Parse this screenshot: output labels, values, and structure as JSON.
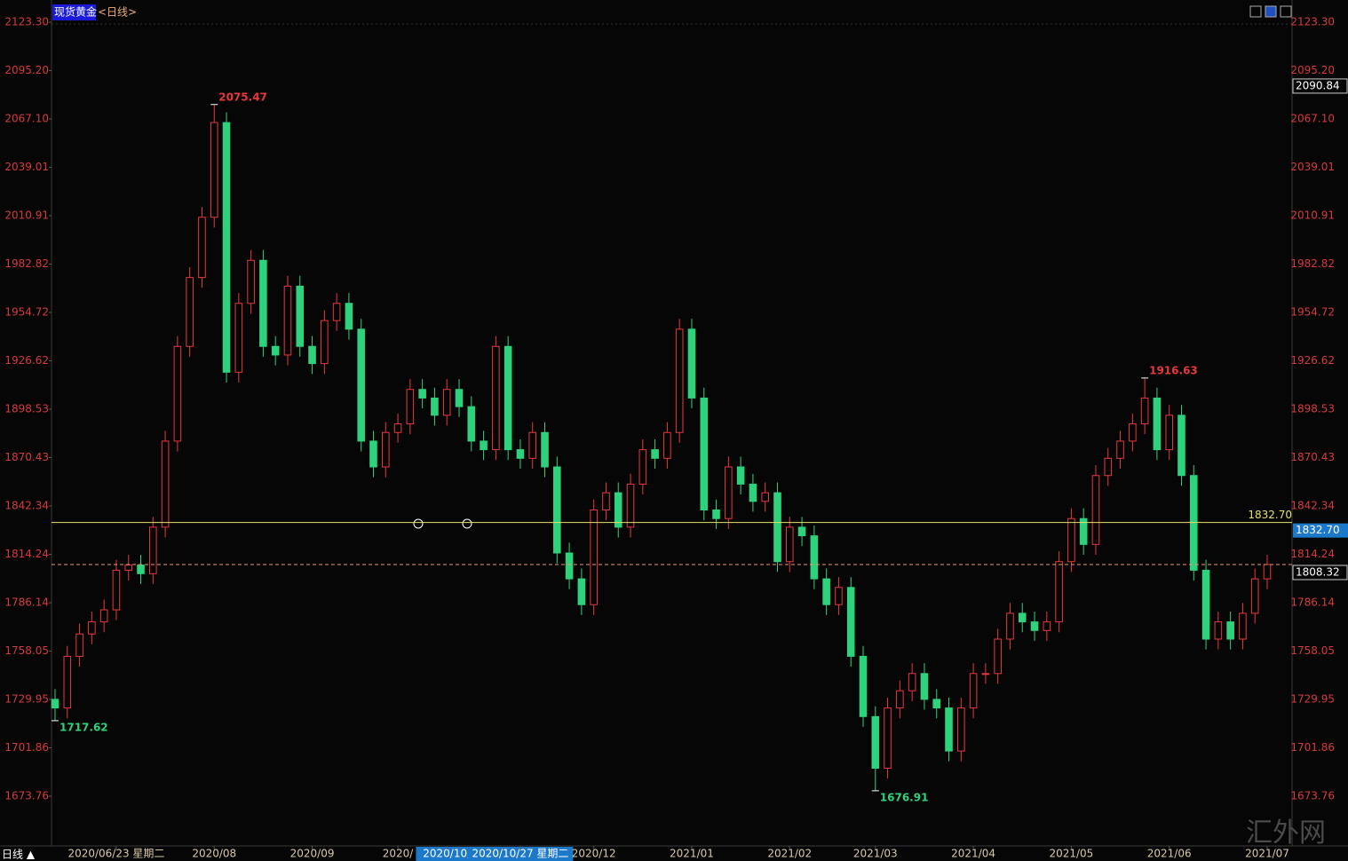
{
  "chart_data": {
    "type": "candlestick",
    "title": "现货黄金",
    "subtitle": "<日线>",
    "period_label": "日线 ▲",
    "watermark": "汇外网",
    "open": [
      1730,
      1725,
      1755,
      1768,
      1775,
      1782,
      1805,
      1808,
      1803,
      1830,
      1880,
      1935,
      1975,
      2010,
      2065,
      1920,
      1960,
      1985,
      1935,
      1930,
      1970,
      1935,
      1925,
      1950,
      1960,
      1945,
      1880,
      1865,
      1885,
      1890,
      1910,
      1905,
      1895,
      1910,
      1900,
      1880,
      1875,
      1935,
      1875,
      1870,
      1885,
      1865,
      1815,
      1800,
      1785,
      1840,
      1850,
      1830,
      1855,
      1875,
      1870,
      1885,
      1945,
      1905,
      1840,
      1835,
      1865,
      1855,
      1845,
      1850,
      1810,
      1830,
      1825,
      1800,
      1785,
      1795,
      1755,
      1720,
      1690,
      1725,
      1735,
      1745,
      1730,
      1725,
      1700,
      1725,
      1745,
      1745,
      1765,
      1780,
      1775,
      1770,
      1775,
      1810,
      1835,
      1820,
      1860,
      1870,
      1880,
      1890,
      1905,
      1875,
      1895,
      1860,
      1805,
      1765,
      1775,
      1765,
      1780,
      1800
    ],
    "high": [
      1736,
      1761,
      1774,
      1781,
      1788,
      1811,
      1814,
      1814,
      1836,
      1886,
      1941,
      1981,
      2016,
      2075.47,
      2071,
      1966,
      1991,
      1991,
      1941,
      1976,
      1976,
      1941,
      1956,
      1966,
      1966,
      1951,
      1886,
      1891,
      1896,
      1916,
      1916,
      1911,
      1916,
      1916,
      1906,
      1886,
      1941,
      1941,
      1881,
      1891,
      1891,
      1871,
      1821,
      1806,
      1846,
      1856,
      1856,
      1861,
      1881,
      1881,
      1891,
      1951,
      1951,
      1911,
      1846,
      1871,
      1871,
      1861,
      1856,
      1856,
      1836,
      1836,
      1831,
      1806,
      1801,
      1801,
      1761,
      1726,
      1731,
      1741,
      1751,
      1751,
      1736,
      1731,
      1731,
      1751,
      1751,
      1771,
      1786,
      1786,
      1781,
      1781,
      1816,
      1841,
      1841,
      1866,
      1876,
      1886,
      1896,
      1916.63,
      1911,
      1901,
      1901,
      1866,
      1811,
      1781,
      1781,
      1786,
      1806,
      1814
    ],
    "low": [
      1717.62,
      1719,
      1749,
      1762,
      1769,
      1776,
      1799,
      1797,
      1797,
      1824,
      1874,
      1929,
      1969,
      2004,
      1914,
      1914,
      1954,
      1929,
      1924,
      1924,
      1929,
      1919,
      1919,
      1944,
      1939,
      1874,
      1859,
      1859,
      1879,
      1884,
      1899,
      1889,
      1889,
      1894,
      1874,
      1869,
      1869,
      1869,
      1864,
      1864,
      1859,
      1809,
      1794,
      1779,
      1779,
      1834,
      1824,
      1824,
      1849,
      1864,
      1864,
      1879,
      1899,
      1834,
      1829,
      1829,
      1849,
      1839,
      1839,
      1804,
      1804,
      1819,
      1794,
      1779,
      1779,
      1749,
      1714,
      1676.91,
      1684,
      1719,
      1729,
      1724,
      1719,
      1694,
      1694,
      1719,
      1739,
      1739,
      1759,
      1769,
      1764,
      1764,
      1769,
      1804,
      1814,
      1814,
      1854,
      1864,
      1874,
      1884,
      1869,
      1869,
      1854,
      1799,
      1759,
      1759,
      1759,
      1759,
      1774,
      1794
    ],
    "close": [
      1725,
      1755,
      1768,
      1775,
      1782,
      1805,
      1808,
      1803,
      1830,
      1880,
      1935,
      1975,
      2010,
      2065,
      1920,
      1960,
      1985,
      1935,
      1930,
      1970,
      1935,
      1925,
      1950,
      1960,
      1945,
      1880,
      1865,
      1885,
      1890,
      1910,
      1905,
      1895,
      1910,
      1900,
      1880,
      1875,
      1935,
      1875,
      1870,
      1885,
      1865,
      1815,
      1800,
      1785,
      1840,
      1850,
      1830,
      1855,
      1875,
      1870,
      1885,
      1945,
      1905,
      1840,
      1835,
      1865,
      1855,
      1845,
      1850,
      1810,
      1830,
      1825,
      1800,
      1785,
      1795,
      1755,
      1720,
      1690,
      1725,
      1735,
      1745,
      1730,
      1725,
      1700,
      1725,
      1745,
      1745,
      1765,
      1780,
      1775,
      1770,
      1775,
      1810,
      1835,
      1820,
      1860,
      1870,
      1880,
      1890,
      1905,
      1875,
      1895,
      1860,
      1805,
      1765,
      1775,
      1765,
      1780,
      1800,
      1808.32
    ],
    "up_color": "#e8383c",
    "down_color": "#2fd27c",
    "ylim": [
      1645.4,
      2133.6
    ],
    "yticks": [
      {
        "value": 2123.3,
        "label": "2123.30"
      },
      {
        "value": 2095.2,
        "label": "2095.20"
      },
      {
        "value": 2067.1,
        "label": "2067.10"
      },
      2039.01,
      2010.91,
      1982.82,
      1954.72,
      1926.62,
      1898.53,
      1870.43,
      1842.34,
      1814.24,
      1786.14,
      1758.05,
      1729.95,
      1701.86,
      1673.76
    ],
    "xticks": [
      {
        "value": 5,
        "label": "2020/06/23 星期二"
      },
      {
        "value": 13,
        "label": "2020/08"
      },
      {
        "value": 21,
        "label": "2020/09"
      },
      {
        "value": 28,
        "label": "2020/"
      },
      {
        "value": 32,
        "label": "2020/10/",
        "highlight": true
      },
      {
        "value": 38,
        "label": "2020/10/27 星期二",
        "highlight": true
      },
      {
        "value": 44,
        "label": "2020/12"
      },
      {
        "value": 52,
        "label": "2021/01"
      },
      {
        "value": 60,
        "label": "2021/02"
      },
      {
        "value": 67,
        "label": "2021/03"
      },
      {
        "value": 75,
        "label": "2021/04"
      },
      {
        "value": 83,
        "label": "2021/05"
      },
      {
        "value": 91,
        "label": "2021/06"
      },
      {
        "value": 99,
        "label": "2021/07"
      }
    ],
    "hline": {
      "value": 1832.7,
      "label": "1832.70",
      "color": "#e6e070"
    },
    "cursor_price": 2090.84
  }
}
